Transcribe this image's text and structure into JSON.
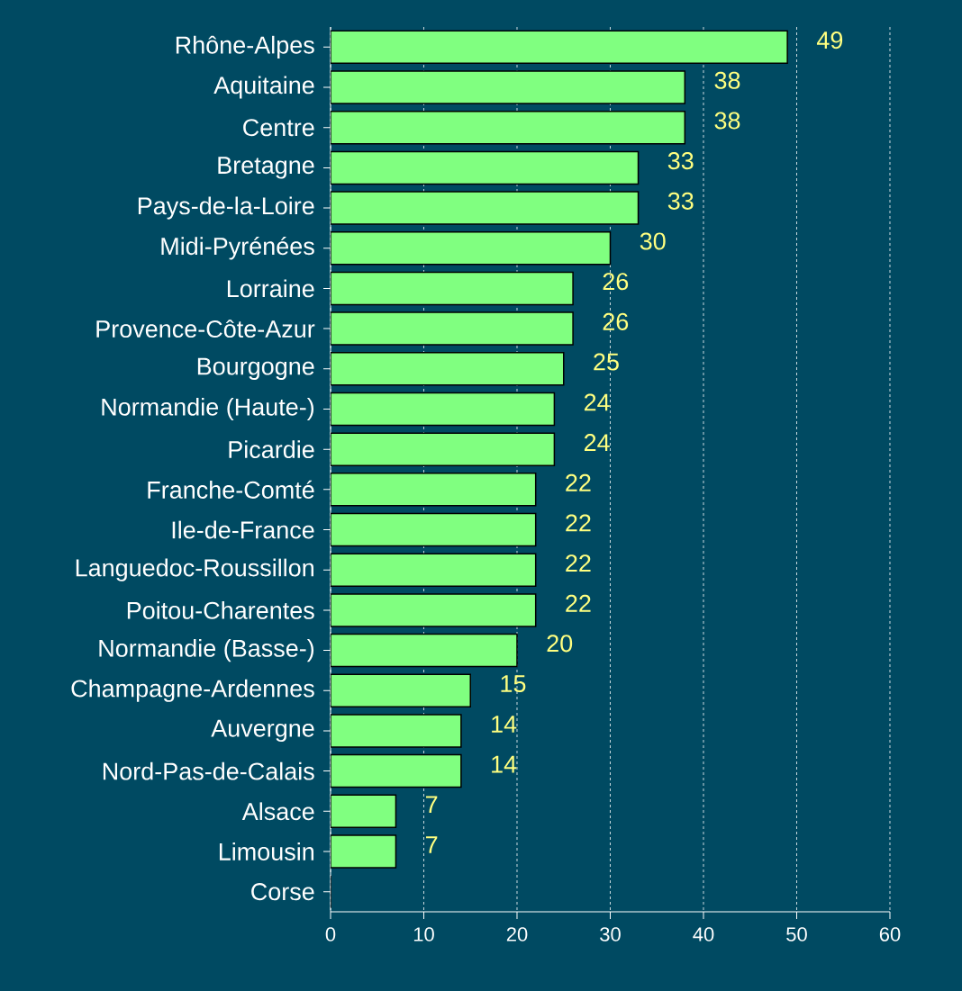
{
  "chart_data": {
    "type": "bar",
    "orientation": "horizontal",
    "categories": [
      "Rhône-Alpes",
      "Aquitaine",
      "Centre",
      "Bretagne",
      "Pays-de-la-Loire",
      "Midi-Pyrénées",
      "Lorraine",
      "Provence-Côte-Azur",
      "Bourgogne",
      "Normandie (Haute-)",
      "Picardie",
      "Franche-Comté",
      "Ile-de-France",
      "Languedoc-Roussillon",
      "Poitou-Charentes",
      "Normandie (Basse-)",
      "Champagne-Ardennes",
      "Auvergne",
      "Nord-Pas-de-Calais",
      "Alsace",
      "Limousin",
      "Corse"
    ],
    "values": [
      49,
      38,
      38,
      33,
      33,
      30,
      26,
      26,
      25,
      24,
      24,
      22,
      22,
      22,
      22,
      20,
      15,
      14,
      14,
      7,
      7,
      0
    ],
    "value_labels": [
      "49",
      "38",
      "38",
      "33",
      "33",
      "30",
      "26",
      "26",
      "25",
      "24",
      "24",
      "22",
      "22",
      "22",
      "22",
      "20",
      "15",
      "14",
      "14",
      "7",
      "7",
      null
    ],
    "color": "#80ff80",
    "xlim": [
      0,
      60
    ],
    "xticks": [
      0,
      10,
      20,
      30,
      40,
      50,
      60
    ],
    "grid": "x"
  }
}
